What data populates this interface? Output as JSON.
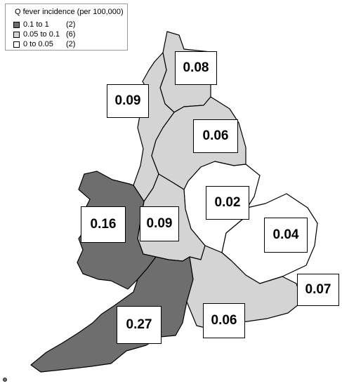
{
  "legend": {
    "title": "Q fever incidence (per 100,000)",
    "items": [
      {
        "range": "0.1    to 1",
        "count": "(2)",
        "color": "#6e6e6e"
      },
      {
        "range": "0.05 to 0.1",
        "count": "(6)",
        "color": "#d4d4d4"
      },
      {
        "range": "0      to 0.05",
        "count": "(2)",
        "color": "#ffffff"
      }
    ]
  },
  "regions": [
    {
      "value": "0.08",
      "class": "0.05 to 0.1"
    },
    {
      "value": "0.09",
      "class": "0.05 to 0.1"
    },
    {
      "value": "0.06",
      "class": "0.05 to 0.1"
    },
    {
      "value": "0.16",
      "class": "0.1 to 1"
    },
    {
      "value": "0.09",
      "class": "0.05 to 0.1"
    },
    {
      "value": "0.02",
      "class": "0 to 0.05"
    },
    {
      "value": "0.04",
      "class": "0 to 0.05"
    },
    {
      "value": "0.07",
      "class": "0.05 to 0.1"
    },
    {
      "value": "0.27",
      "class": "0.1 to 1"
    },
    {
      "value": "0.06",
      "class": "0.05 to 0.1"
    }
  ]
}
